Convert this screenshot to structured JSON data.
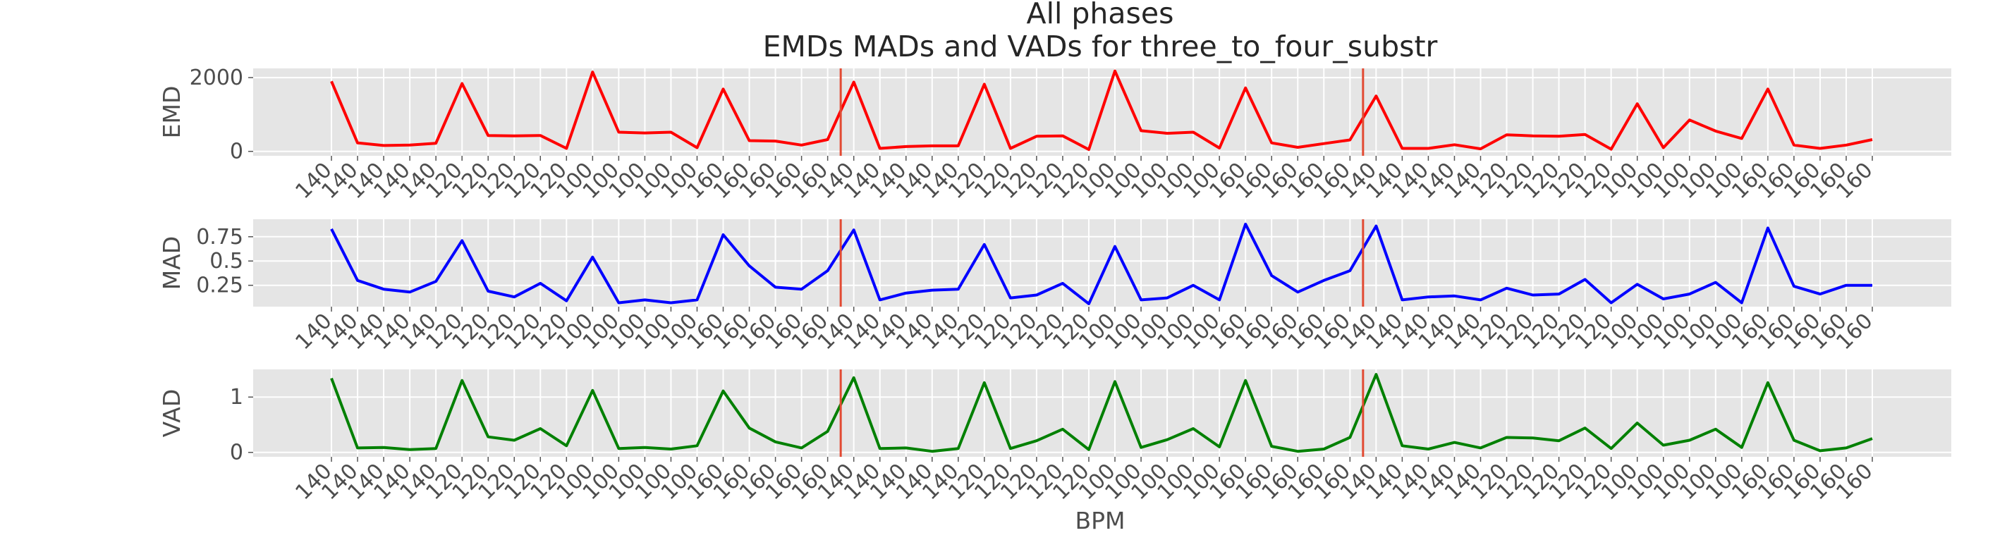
{
  "figure": {
    "title_line1": "All phases",
    "title_line2": "EMDs MADs and VADs for three_to_four_substr"
  },
  "chart_data": [
    {
      "type": "line",
      "ylabel": "EMD",
      "xlabel": "",
      "color": "#ff0000",
      "vline_color": "#e24a33",
      "grid": true,
      "categories": [
        "140",
        "140",
        "140",
        "140",
        "140",
        "120",
        "120",
        "120",
        "120",
        "120",
        "100",
        "100",
        "100",
        "100",
        "100",
        "160",
        "160",
        "160",
        "160",
        "160",
        "140",
        "140",
        "140",
        "140",
        "140",
        "120",
        "120",
        "120",
        "120",
        "120",
        "100",
        "100",
        "100",
        "100",
        "100",
        "160",
        "160",
        "160",
        "160",
        "160",
        "140",
        "140",
        "140",
        "140",
        "140",
        "120",
        "120",
        "120",
        "120",
        "120",
        "100",
        "100",
        "100",
        "100",
        "100",
        "160",
        "160",
        "160",
        "160",
        "160"
      ],
      "values": [
        1900,
        230,
        160,
        170,
        220,
        1840,
        430,
        420,
        430,
        80,
        2150,
        520,
        500,
        520,
        100,
        1690,
        290,
        280,
        170,
        320,
        1880,
        80,
        130,
        150,
        150,
        1820,
        80,
        410,
        420,
        50,
        2180,
        560,
        490,
        520,
        90,
        1720,
        230,
        110,
        210,
        310,
        1500,
        80,
        80,
        180,
        70,
        450,
        420,
        410,
        460,
        60,
        1290,
        100,
        850,
        550,
        350,
        1690,
        170,
        80,
        170,
        320
      ],
      "yticks": [
        0,
        2000
      ],
      "ylim": [
        -120,
        2250
      ],
      "vlines_x": [
        19.5,
        39.5
      ]
    },
    {
      "type": "line",
      "ylabel": "MAD",
      "xlabel": "",
      "color": "#0000ff",
      "vline_color": "#e24a33",
      "grid": true,
      "categories": [
        "140",
        "140",
        "140",
        "140",
        "140",
        "120",
        "120",
        "120",
        "120",
        "120",
        "100",
        "100",
        "100",
        "100",
        "100",
        "160",
        "160",
        "160",
        "160",
        "160",
        "140",
        "140",
        "140",
        "140",
        "140",
        "120",
        "120",
        "120",
        "120",
        "120",
        "100",
        "100",
        "100",
        "100",
        "100",
        "160",
        "160",
        "160",
        "160",
        "160",
        "140",
        "140",
        "140",
        "140",
        "140",
        "120",
        "120",
        "120",
        "120",
        "120",
        "100",
        "100",
        "100",
        "100",
        "100",
        "160",
        "160",
        "160",
        "160",
        "160"
      ],
      "values": [
        0.83,
        0.3,
        0.21,
        0.18,
        0.29,
        0.71,
        0.19,
        0.13,
        0.27,
        0.09,
        0.54,
        0.07,
        0.1,
        0.07,
        0.1,
        0.77,
        0.45,
        0.23,
        0.21,
        0.4,
        0.82,
        0.1,
        0.17,
        0.2,
        0.21,
        0.67,
        0.12,
        0.15,
        0.27,
        0.06,
        0.65,
        0.1,
        0.12,
        0.25,
        0.1,
        0.88,
        0.35,
        0.18,
        0.3,
        0.4,
        0.86,
        0.1,
        0.13,
        0.14,
        0.1,
        0.22,
        0.15,
        0.16,
        0.31,
        0.07,
        0.26,
        0.11,
        0.16,
        0.28,
        0.07,
        0.84,
        0.24,
        0.16,
        0.25,
        0.25
      ],
      "yticks": [
        0.25,
        0.5,
        0.75
      ],
      "ylim": [
        0.03,
        0.93
      ],
      "vlines_x": [
        19.5,
        39.5
      ]
    },
    {
      "type": "line",
      "ylabel": "VAD",
      "xlabel": "BPM",
      "color": "#008000",
      "vline_color": "#e24a33",
      "grid": true,
      "categories": [
        "140",
        "140",
        "140",
        "140",
        "140",
        "120",
        "120",
        "120",
        "120",
        "120",
        "100",
        "100",
        "100",
        "100",
        "100",
        "160",
        "160",
        "160",
        "160",
        "160",
        "140",
        "140",
        "140",
        "140",
        "140",
        "120",
        "120",
        "120",
        "120",
        "120",
        "100",
        "100",
        "100",
        "100",
        "100",
        "160",
        "160",
        "160",
        "160",
        "160",
        "140",
        "140",
        "140",
        "140",
        "140",
        "120",
        "120",
        "120",
        "120",
        "120",
        "100",
        "100",
        "100",
        "100",
        "100",
        "160",
        "160",
        "160",
        "160",
        "160"
      ],
      "values": [
        1.34,
        0.08,
        0.09,
        0.05,
        0.07,
        1.3,
        0.28,
        0.22,
        0.43,
        0.12,
        1.12,
        0.07,
        0.09,
        0.06,
        0.12,
        1.11,
        0.44,
        0.19,
        0.08,
        0.38,
        1.35,
        0.07,
        0.08,
        0.02,
        0.07,
        1.26,
        0.07,
        0.21,
        0.42,
        0.05,
        1.28,
        0.09,
        0.23,
        0.43,
        0.1,
        1.3,
        0.11,
        0.02,
        0.06,
        0.27,
        1.41,
        0.12,
        0.06,
        0.18,
        0.08,
        0.27,
        0.26,
        0.21,
        0.44,
        0.07,
        0.53,
        0.13,
        0.22,
        0.42,
        0.09,
        1.26,
        0.22,
        0.03,
        0.08,
        0.25
      ],
      "yticks": [
        0,
        1
      ],
      "ylim": [
        -0.08,
        1.5
      ],
      "vlines_x": [
        19.5,
        39.5
      ]
    }
  ]
}
